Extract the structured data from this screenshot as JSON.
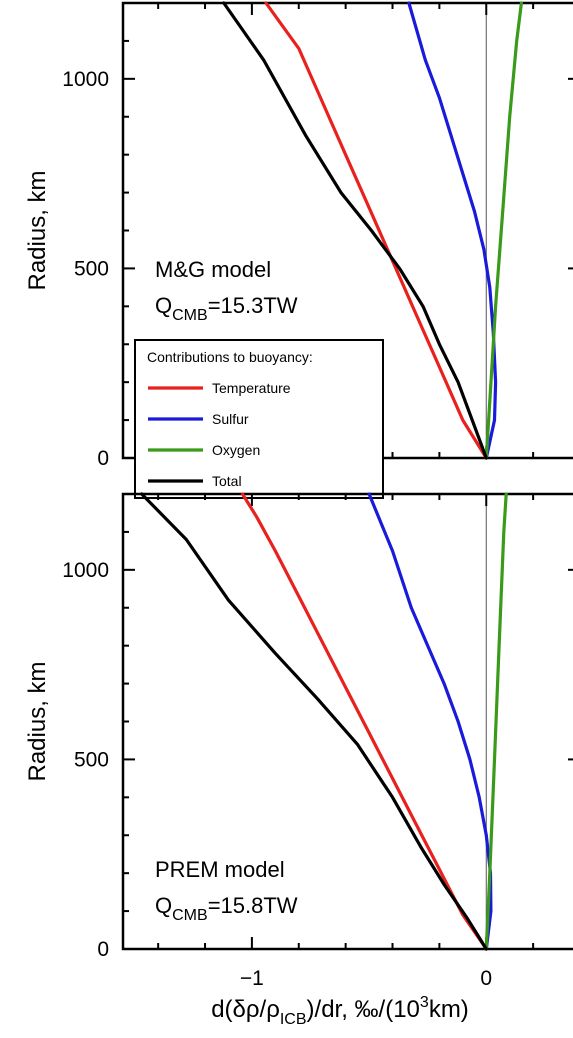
{
  "chart_data": [
    {
      "type": "line",
      "panel": "top",
      "ylabel": "Radius, km",
      "xlabel": "",
      "ylim": [
        0,
        1200
      ],
      "xlim": [
        -1.55,
        0.4
      ],
      "yticks": [
        {
          "value": 0,
          "label": "0"
        },
        {
          "value": 500,
          "label": "500"
        },
        {
          "value": 1000,
          "label": "1000"
        }
      ],
      "xticks": [],
      "annotation": {
        "line1": "M&G model",
        "q_main": "Q",
        "q_sub": "CMB",
        "q_rest": "=15.3TW"
      },
      "legend": {
        "title": "Contributions to buoyancy:",
        "placement": "lower-left",
        "entries": [
          "Temperature",
          "Sulfur",
          "Oxygen",
          "Total"
        ]
      },
      "series": [
        {
          "name": "Temperature",
          "color": "#e8211f",
          "x": [
            0,
            -0.1,
            -0.2,
            -0.3,
            -0.4,
            -0.5,
            -0.6,
            -0.7,
            -0.8,
            -0.87,
            -0.94
          ],
          "y": [
            0,
            100,
            240,
            380,
            520,
            660,
            800,
            940,
            1080,
            1140,
            1200
          ]
        },
        {
          "name": "Sulfur",
          "color": "#1a1adb",
          "x": [
            0,
            0.035,
            0.04,
            0.03,
            0.015,
            -0.01,
            -0.05,
            -0.1,
            -0.15,
            -0.2,
            -0.26,
            -0.33
          ],
          "y": [
            0,
            100,
            200,
            330,
            450,
            550,
            650,
            750,
            850,
            950,
            1050,
            1200
          ]
        },
        {
          "name": "Oxygen",
          "color": "#3a9a1a",
          "x": [
            0,
            0.015,
            0.04,
            0.07,
            0.1,
            0.13,
            0.15
          ],
          "y": [
            0,
            150,
            400,
            650,
            900,
            1100,
            1200
          ]
        },
        {
          "name": "Total",
          "color": "#000000",
          "x": [
            0,
            -0.06,
            -0.12,
            -0.2,
            -0.27,
            -0.37,
            -0.49,
            -0.62,
            -0.77,
            -0.95,
            -1.12
          ],
          "y": [
            0,
            100,
            200,
            300,
            400,
            500,
            600,
            700,
            850,
            1050,
            1200
          ]
        }
      ]
    },
    {
      "type": "line",
      "panel": "bottom",
      "ylabel": "Radius, km",
      "xlabel": "d(δρ/ρ_ICB)/dr, ‰/(10³km)",
      "xlabel_parts": {
        "a": "d(δρ/ρ",
        "sub": "ICB",
        "b": ")/dr, ‰/(10",
        "sup": "3",
        "c": "km)"
      },
      "ylim": [
        0,
        1200
      ],
      "xlim": [
        -1.55,
        0.4
      ],
      "yticks": [
        {
          "value": 0,
          "label": "0"
        },
        {
          "value": 500,
          "label": "500"
        },
        {
          "value": 1000,
          "label": "1000"
        }
      ],
      "xticks": [
        {
          "value": -1,
          "label": "−1"
        },
        {
          "value": 0,
          "label": "0"
        }
      ],
      "annotation": {
        "line1": "PREM model",
        "q_main": "Q",
        "q_sub": "CMB",
        "q_rest": "=15.8TW"
      },
      "series": [
        {
          "name": "Temperature",
          "color": "#e8211f",
          "x": [
            0,
            -0.1,
            -0.2,
            -0.3,
            -0.4,
            -0.5,
            -0.6,
            -0.7,
            -0.8,
            -0.9,
            -0.98,
            -1.04
          ],
          "y": [
            0,
            90,
            210,
            330,
            450,
            570,
            690,
            810,
            930,
            1050,
            1140,
            1200
          ]
        },
        {
          "name": "Sulfur",
          "color": "#1a1adb",
          "x": [
            0,
            0.02,
            0.018,
            0.0,
            -0.03,
            -0.07,
            -0.12,
            -0.18,
            -0.25,
            -0.32,
            -0.4,
            -0.5
          ],
          "y": [
            0,
            100,
            200,
            300,
            400,
            500,
            600,
            700,
            800,
            900,
            1050,
            1200
          ]
        },
        {
          "name": "Oxygen",
          "color": "#3a9a1a",
          "x": [
            0,
            0.015,
            0.035,
            0.055,
            0.075,
            0.085
          ],
          "y": [
            0,
            200,
            500,
            800,
            1100,
            1200
          ]
        },
        {
          "name": "Total",
          "color": "#000000",
          "x": [
            0,
            -0.08,
            -0.18,
            -0.28,
            -0.4,
            -0.55,
            -0.72,
            -0.9,
            -1.1,
            -1.28,
            -1.47
          ],
          "y": [
            0,
            80,
            170,
            270,
            400,
            540,
            660,
            780,
            920,
            1080,
            1200
          ]
        }
      ]
    }
  ]
}
